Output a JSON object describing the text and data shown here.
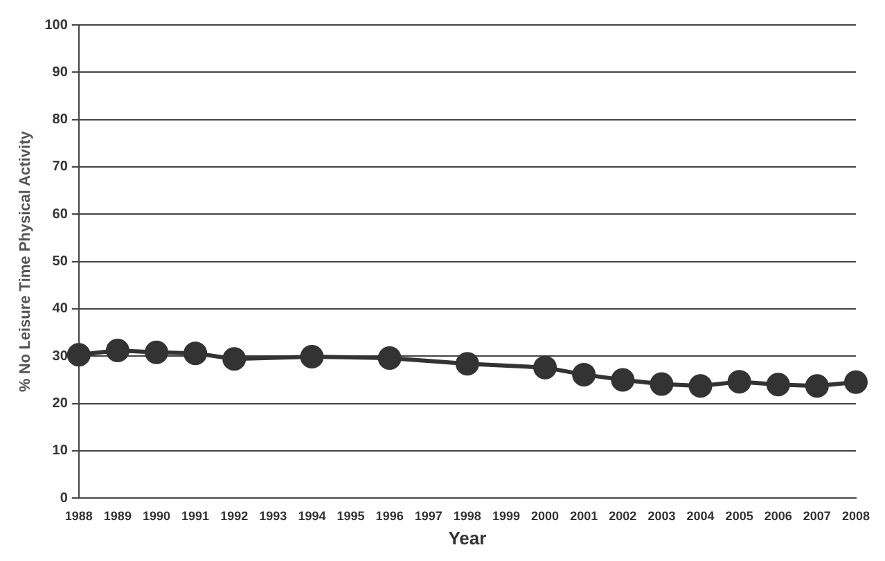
{
  "chart_data": {
    "type": "line",
    "xlabel": "Year",
    "ylabel": "% No Leisure Time Physical Activity",
    "categories": [
      "1988",
      "1989",
      "1990",
      "1991",
      "1992",
      "1993",
      "1994",
      "1995",
      "1996",
      "1997",
      "1998",
      "1999",
      "2000",
      "2001",
      "2002",
      "2003",
      "2004",
      "2005",
      "2006",
      "2007",
      "2008"
    ],
    "series": [
      {
        "color": "#333333",
        "values": [
          30.3,
          31.2,
          30.8,
          30.6,
          29.4,
          null,
          29.9,
          null,
          29.6,
          null,
          28.4,
          null,
          27.6,
          26.1,
          25.0,
          24.1,
          23.7,
          24.6,
          24.0,
          23.7,
          24.5
        ]
      }
    ],
    "ylim": [
      0,
      100
    ],
    "yticks": [
      0,
      10,
      20,
      30,
      40,
      50,
      60,
      70,
      80,
      90,
      100
    ],
    "grid": "y",
    "marker": "circle",
    "line_style": "solid",
    "legend": false
  }
}
